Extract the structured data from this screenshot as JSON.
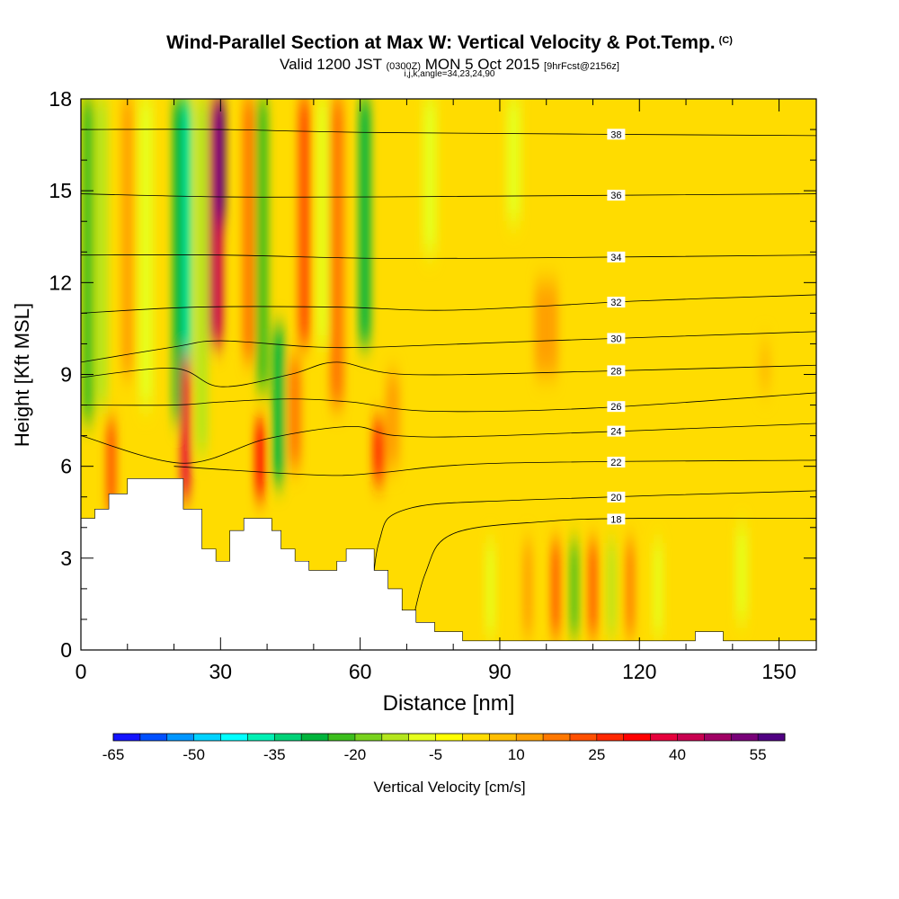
{
  "header": {
    "title": "Wind-Parallel Section at Max W: Vertical Velocity & Pot.Temp.",
    "copyright": "(C)",
    "valid_prefix": "Valid 1200 JST",
    "valid_zone": "(0300Z)",
    "valid_date": "MON 5 Oct 2015",
    "forecast": "[9hrFcst@2156z]",
    "indices": "i,j,k,angle=34,23,24,90"
  },
  "chart_data": {
    "type": "heatmap",
    "xlabel": "Distance [nm]",
    "ylabel": "Height [Kft MSL]",
    "xlim": [
      0,
      158
    ],
    "ylim": [
      0,
      18
    ],
    "x_ticks": [
      "0",
      "30",
      "60",
      "90",
      "120",
      "150"
    ],
    "y_ticks": [
      "0",
      "3",
      "6",
      "9",
      "12",
      "15",
      "18"
    ],
    "colorbar": {
      "label": "Vertical Velocity [cm/s]",
      "ticks": [
        "-65",
        "-50",
        "-35",
        "-20",
        "-5",
        "10",
        "25",
        "40",
        "55"
      ],
      "range": [
        -65,
        60
      ],
      "colors": [
        "#1414ff",
        "#0050ff",
        "#0096ff",
        "#00d2ff",
        "#00ffff",
        "#00f0b4",
        "#00d278",
        "#00b43c",
        "#3cbe1e",
        "#78d21e",
        "#b4e61e",
        "#e6ff1e",
        "#ffff00",
        "#ffdc00",
        "#ffbe00",
        "#ffa000",
        "#ff7800",
        "#ff5000",
        "#ff2800",
        "#ff0000",
        "#e6003c",
        "#c80050",
        "#a00064",
        "#780078",
        "#500082"
      ]
    },
    "theta_contours": [
      {
        "label": "18",
        "points": [
          [
            70,
            0
          ],
          [
            74,
            2.5
          ],
          [
            80,
            3.8
          ],
          [
            100,
            4.2
          ],
          [
            120,
            4.3
          ],
          [
            158,
            4.3
          ]
        ]
      },
      {
        "label": "20",
        "points": [
          [
            62,
            0.5
          ],
          [
            64,
            3.5
          ],
          [
            70,
            4.6
          ],
          [
            95,
            4.9
          ],
          [
            158,
            5.2
          ]
        ]
      },
      {
        "label": "22",
        "points": [
          [
            20,
            6.0
          ],
          [
            40,
            5.8
          ],
          [
            55,
            5.7
          ],
          [
            65,
            5.8
          ],
          [
            90,
            6.1
          ],
          [
            158,
            6.2
          ]
        ]
      },
      {
        "label": "24",
        "points": [
          [
            0,
            7.0
          ],
          [
            22,
            6.1
          ],
          [
            40,
            6.9
          ],
          [
            58,
            7.3
          ],
          [
            68,
            7.0
          ],
          [
            90,
            7.0
          ],
          [
            158,
            7.4
          ]
        ]
      },
      {
        "label": "26",
        "points": [
          [
            0,
            8.0
          ],
          [
            20,
            8.0
          ],
          [
            30,
            8.1
          ],
          [
            45,
            8.2
          ],
          [
            58,
            8.1
          ],
          [
            75,
            7.8
          ],
          [
            110,
            7.9
          ],
          [
            158,
            8.4
          ]
        ]
      },
      {
        "label": "28",
        "points": [
          [
            0,
            8.9
          ],
          [
            20,
            9.2
          ],
          [
            30,
            8.6
          ],
          [
            45,
            9.0
          ],
          [
            55,
            9.4
          ],
          [
            70,
            9.0
          ],
          [
            110,
            9.1
          ],
          [
            158,
            9.3
          ]
        ]
      },
      {
        "label": "30",
        "points": [
          [
            0,
            9.4
          ],
          [
            20,
            9.9
          ],
          [
            30,
            10.1
          ],
          [
            50,
            9.9
          ],
          [
            65,
            9.9
          ],
          [
            100,
            10.1
          ],
          [
            158,
            10.4
          ]
        ]
      },
      {
        "label": "32",
        "points": [
          [
            0,
            11.0
          ],
          [
            25,
            11.2
          ],
          [
            55,
            11.2
          ],
          [
            80,
            11.1
          ],
          [
            120,
            11.4
          ],
          [
            158,
            11.6
          ]
        ]
      },
      {
        "label": "34",
        "points": [
          [
            0,
            12.9
          ],
          [
            30,
            12.9
          ],
          [
            60,
            12.8
          ],
          [
            90,
            12.8
          ],
          [
            158,
            12.9
          ]
        ]
      },
      {
        "label": "36",
        "points": [
          [
            0,
            14.9
          ],
          [
            30,
            14.8
          ],
          [
            65,
            14.8
          ],
          [
            158,
            14.9
          ]
        ]
      },
      {
        "label": "38",
        "points": [
          [
            0,
            17.0
          ],
          [
            30,
            17.0
          ],
          [
            65,
            16.9
          ],
          [
            158,
            16.8
          ]
        ]
      }
    ],
    "terrain": [
      [
        0,
        4.3
      ],
      [
        3,
        4.3
      ],
      [
        3,
        4.6
      ],
      [
        6,
        4.6
      ],
      [
        6,
        5.1
      ],
      [
        10,
        5.1
      ],
      [
        10,
        5.6
      ],
      [
        22,
        5.6
      ],
      [
        22,
        4.6
      ],
      [
        26,
        4.6
      ],
      [
        26,
        3.3
      ],
      [
        29,
        3.3
      ],
      [
        29,
        2.9
      ],
      [
        32,
        2.9
      ],
      [
        32,
        3.9
      ],
      [
        35,
        3.9
      ],
      [
        35,
        4.3
      ],
      [
        41,
        4.3
      ],
      [
        41,
        3.9
      ],
      [
        43,
        3.9
      ],
      [
        43,
        3.3
      ],
      [
        46,
        3.3
      ],
      [
        46,
        2.9
      ],
      [
        49,
        2.9
      ],
      [
        49,
        2.6
      ],
      [
        55,
        2.6
      ],
      [
        55,
        2.9
      ],
      [
        57,
        2.9
      ],
      [
        57,
        3.3
      ],
      [
        63,
        3.3
      ],
      [
        63,
        2.6
      ],
      [
        66,
        2.6
      ],
      [
        66,
        2.0
      ],
      [
        69,
        2.0
      ],
      [
        69,
        1.3
      ],
      [
        72,
        1.3
      ],
      [
        72,
        0.9
      ],
      [
        76,
        0.9
      ],
      [
        76,
        0.6
      ],
      [
        82,
        0.6
      ],
      [
        82,
        0.3
      ],
      [
        132,
        0.3
      ],
      [
        132,
        0.6
      ],
      [
        138,
        0.6
      ],
      [
        138,
        0.3
      ],
      [
        158,
        0.3
      ],
      [
        158,
        0
      ],
      [
        0,
        0
      ]
    ],
    "w_bands": [
      {
        "x": 1.5,
        "w": 2.5,
        "y0": 7.5,
        "y1": 18,
        "value": -25
      },
      {
        "x": 4.5,
        "w": 2.5,
        "y0": 8.0,
        "y1": 18,
        "value": -15
      },
      {
        "x": 6.5,
        "w": 2.0,
        "y0": 4.5,
        "y1": 7.5,
        "value": 20
      },
      {
        "x": 10,
        "w": 2.5,
        "y0": 9.0,
        "y1": 18,
        "value": 10
      },
      {
        "x": 14,
        "w": 3.0,
        "y0": 8.0,
        "y1": 18,
        "value": -10
      },
      {
        "x": 21,
        "w": 2.5,
        "y0": 7.5,
        "y1": 18,
        "value": -30
      },
      {
        "x": 23,
        "w": 1.5,
        "y0": 9.0,
        "y1": 18,
        "value": -40
      },
      {
        "x": 22.5,
        "w": 2.0,
        "y0": 5.0,
        "y1": 9.5,
        "value": 38
      },
      {
        "x": 26,
        "w": 2.5,
        "y0": 6.5,
        "y1": 18,
        "value": -15
      },
      {
        "x": 29,
        "w": 3.0,
        "y0": 10,
        "y1": 18,
        "value": 40
      },
      {
        "x": 30,
        "w": 2.0,
        "y0": 14,
        "y1": 18,
        "value": 55
      },
      {
        "x": 36,
        "w": 2.5,
        "y0": 9.5,
        "y1": 18,
        "value": 15
      },
      {
        "x": 39,
        "w": 2.5,
        "y0": 8.5,
        "y1": 18,
        "value": -25
      },
      {
        "x": 38.5,
        "w": 2.0,
        "y0": 5.0,
        "y1": 7.5,
        "value": 30
      },
      {
        "x": 42.5,
        "w": 2.5,
        "y0": 5.5,
        "y1": 10.5,
        "value": -30
      },
      {
        "x": 46,
        "w": 2.5,
        "y0": 6.0,
        "y1": 9.5,
        "value": 18
      },
      {
        "x": 48,
        "w": 2.5,
        "y0": 10,
        "y1": 18,
        "value": 20
      },
      {
        "x": 52,
        "w": 2.5,
        "y0": 10,
        "y1": 18,
        "value": -10
      },
      {
        "x": 55,
        "w": 3.0,
        "y0": 8.0,
        "y1": 18,
        "value": 15
      },
      {
        "x": 61,
        "w": 2.5,
        "y0": 10,
        "y1": 18,
        "value": -30
      },
      {
        "x": 64,
        "w": 2.5,
        "y0": 5.5,
        "y1": 7.5,
        "value": 25
      },
      {
        "x": 67,
        "w": 3.0,
        "y0": 6.0,
        "y1": 9.0,
        "value": 10
      },
      {
        "x": 75,
        "w": 3.0,
        "y0": 13,
        "y1": 18,
        "value": -8
      },
      {
        "x": 93,
        "w": 3.0,
        "y0": 14,
        "y1": 18,
        "value": -8
      },
      {
        "x": 100,
        "w": 5.0,
        "y0": 9.0,
        "y1": 12.0,
        "value": 10
      },
      {
        "x": 88,
        "w": 2.0,
        "y0": 0.5,
        "y1": 3.5,
        "value": -10
      },
      {
        "x": 96,
        "w": 2.0,
        "y0": 0.5,
        "y1": 3.5,
        "value": 12
      },
      {
        "x": 102,
        "w": 1.8,
        "y0": 0.5,
        "y1": 3.5,
        "value": 22
      },
      {
        "x": 106,
        "w": 1.8,
        "y0": 0.5,
        "y1": 3.5,
        "value": -25
      },
      {
        "x": 110,
        "w": 1.8,
        "y0": 0.5,
        "y1": 3.5,
        "value": 20
      },
      {
        "x": 114,
        "w": 1.8,
        "y0": 0.5,
        "y1": 3.5,
        "value": -12
      },
      {
        "x": 118,
        "w": 1.8,
        "y0": 0.5,
        "y1": 3.5,
        "value": 18
      },
      {
        "x": 124,
        "w": 2.0,
        "y0": 0.5,
        "y1": 3.5,
        "value": -8
      },
      {
        "x": 142,
        "w": 2.5,
        "y0": 1.0,
        "y1": 4.0,
        "value": -8
      },
      {
        "x": 147,
        "w": 2.5,
        "y0": 8.5,
        "y1": 10.0,
        "value": 8
      }
    ]
  }
}
